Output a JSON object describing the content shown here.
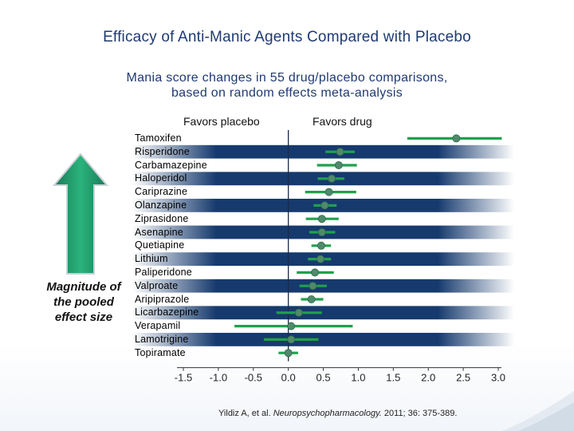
{
  "title": "Efficacy of Anti-Manic Agents Compared with Placebo",
  "subtitle_line1": "Mania score changes in 55 drug/placebo comparisons,",
  "subtitle_line2": "based on random effects meta-analysis",
  "favors_placebo": "Favors placebo",
  "favors_drug": "Favors drug",
  "magnitude_line1": "Magnitude of",
  "magnitude_line2": "the pooled",
  "magnitude_line3": "effect size",
  "citation_prefix": "Yildiz A, et al.",
  "citation_journal": "Neuropsychopharmacology.",
  "citation_suffix": "2011; 36: 375-389.",
  "colors": {
    "title": "#1f3a73",
    "band_dark": "#163a6e",
    "band_light": "#ffffff",
    "marker": "#4f8a6a",
    "ci": "#1fa14e"
  },
  "chart_data": {
    "type": "forest",
    "xlim": [
      -1.5,
      3.0
    ],
    "xticks": [
      -1.5,
      -1.0,
      -0.5,
      0.0,
      0.5,
      1.0,
      1.5,
      2.0,
      2.5,
      3.0
    ],
    "xtick_labels": [
      "-1.5",
      "-1.0",
      "-0.5",
      "0.0",
      "0.5",
      "1.0",
      "1.5",
      "2.0",
      "2.5",
      "3.0"
    ],
    "reference_line": 0.0,
    "drugs": [
      {
        "name": "Tamoxifen",
        "estimate": 2.4,
        "lower": 1.7,
        "upper": 3.05
      },
      {
        "name": "Risperidone",
        "estimate": 0.74,
        "lower": 0.53,
        "upper": 0.95
      },
      {
        "name": "Carbamazepine",
        "estimate": 0.72,
        "lower": 0.41,
        "upper": 0.98
      },
      {
        "name": "Haloperidol",
        "estimate": 0.62,
        "lower": 0.42,
        "upper": 0.8
      },
      {
        "name": "Cariprazine",
        "estimate": 0.58,
        "lower": 0.24,
        "upper": 0.97
      },
      {
        "name": "Olanzapine",
        "estimate": 0.52,
        "lower": 0.36,
        "upper": 0.69
      },
      {
        "name": "Ziprasidone",
        "estimate": 0.48,
        "lower": 0.25,
        "upper": 0.72
      },
      {
        "name": "Asenapine",
        "estimate": 0.48,
        "lower": 0.3,
        "upper": 0.67
      },
      {
        "name": "Quetiapine",
        "estimate": 0.47,
        "lower": 0.33,
        "upper": 0.61
      },
      {
        "name": "Lithium",
        "estimate": 0.46,
        "lower": 0.28,
        "upper": 0.61
      },
      {
        "name": "Paliperidone",
        "estimate": 0.38,
        "lower": 0.12,
        "upper": 0.65
      },
      {
        "name": "Valproate",
        "estimate": 0.35,
        "lower": 0.16,
        "upper": 0.55
      },
      {
        "name": "Aripiprazole",
        "estimate": 0.33,
        "lower": 0.18,
        "upper": 0.5
      },
      {
        "name": "Licarbazepine",
        "estimate": 0.15,
        "lower": -0.17,
        "upper": 0.48
      },
      {
        "name": "Verapamil",
        "estimate": 0.04,
        "lower": -0.77,
        "upper": 0.92
      },
      {
        "name": "Lamotrigine",
        "estimate": 0.04,
        "lower": -0.35,
        "upper": 0.43
      },
      {
        "name": "Topiramate",
        "estimate": 0.0,
        "lower": -0.14,
        "upper": 0.14
      }
    ]
  }
}
